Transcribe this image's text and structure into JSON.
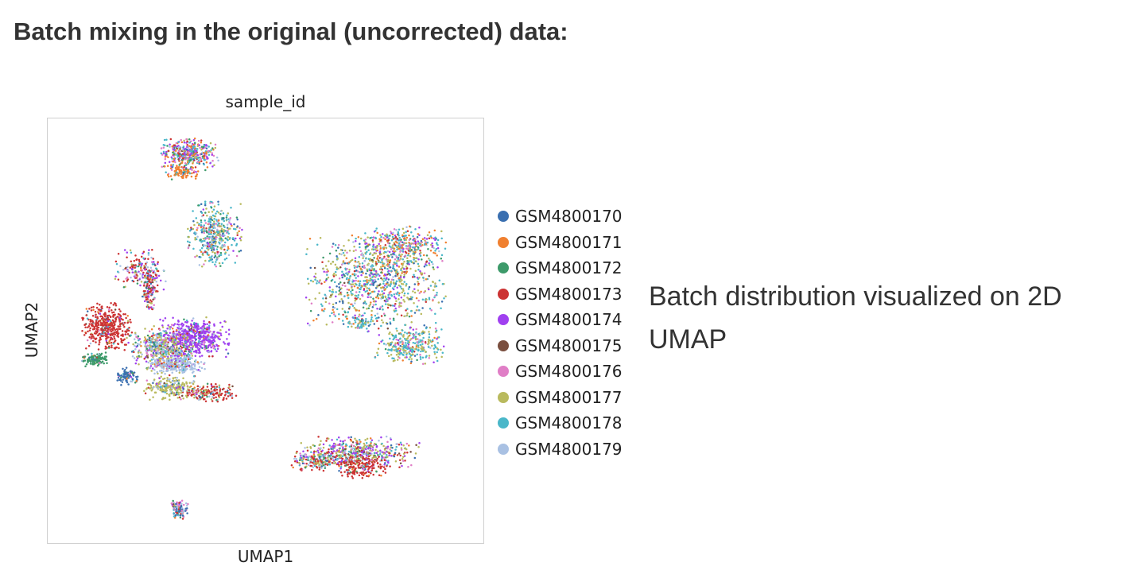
{
  "page": {
    "heading": "Batch mixing in the original (uncorrected) data:",
    "caption": "Batch distribution visualized on 2D UMAP"
  },
  "chart_data": {
    "type": "scatter",
    "title": "sample_id",
    "xlabel": "UMAP1",
    "ylabel": "UMAP2",
    "ticks": "none",
    "grid": false,
    "legend_position": "right",
    "series": [
      {
        "name": "GSM4800170",
        "color": "#3a6fb0"
      },
      {
        "name": "GSM4800171",
        "color": "#f08030"
      },
      {
        "name": "GSM4800172",
        "color": "#3d9a6a"
      },
      {
        "name": "GSM4800173",
        "color": "#cc3333"
      },
      {
        "name": "GSM4800174",
        "color": "#a040f0"
      },
      {
        "name": "GSM4800175",
        "color": "#7a4f3f"
      },
      {
        "name": "GSM4800176",
        "color": "#e07ec6"
      },
      {
        "name": "GSM4800177",
        "color": "#b9ba5e"
      },
      {
        "name": "GSM4800178",
        "color": "#4ab7c9"
      },
      {
        "name": "GSM4800179",
        "color": "#a9c1e3"
      }
    ]
  }
}
